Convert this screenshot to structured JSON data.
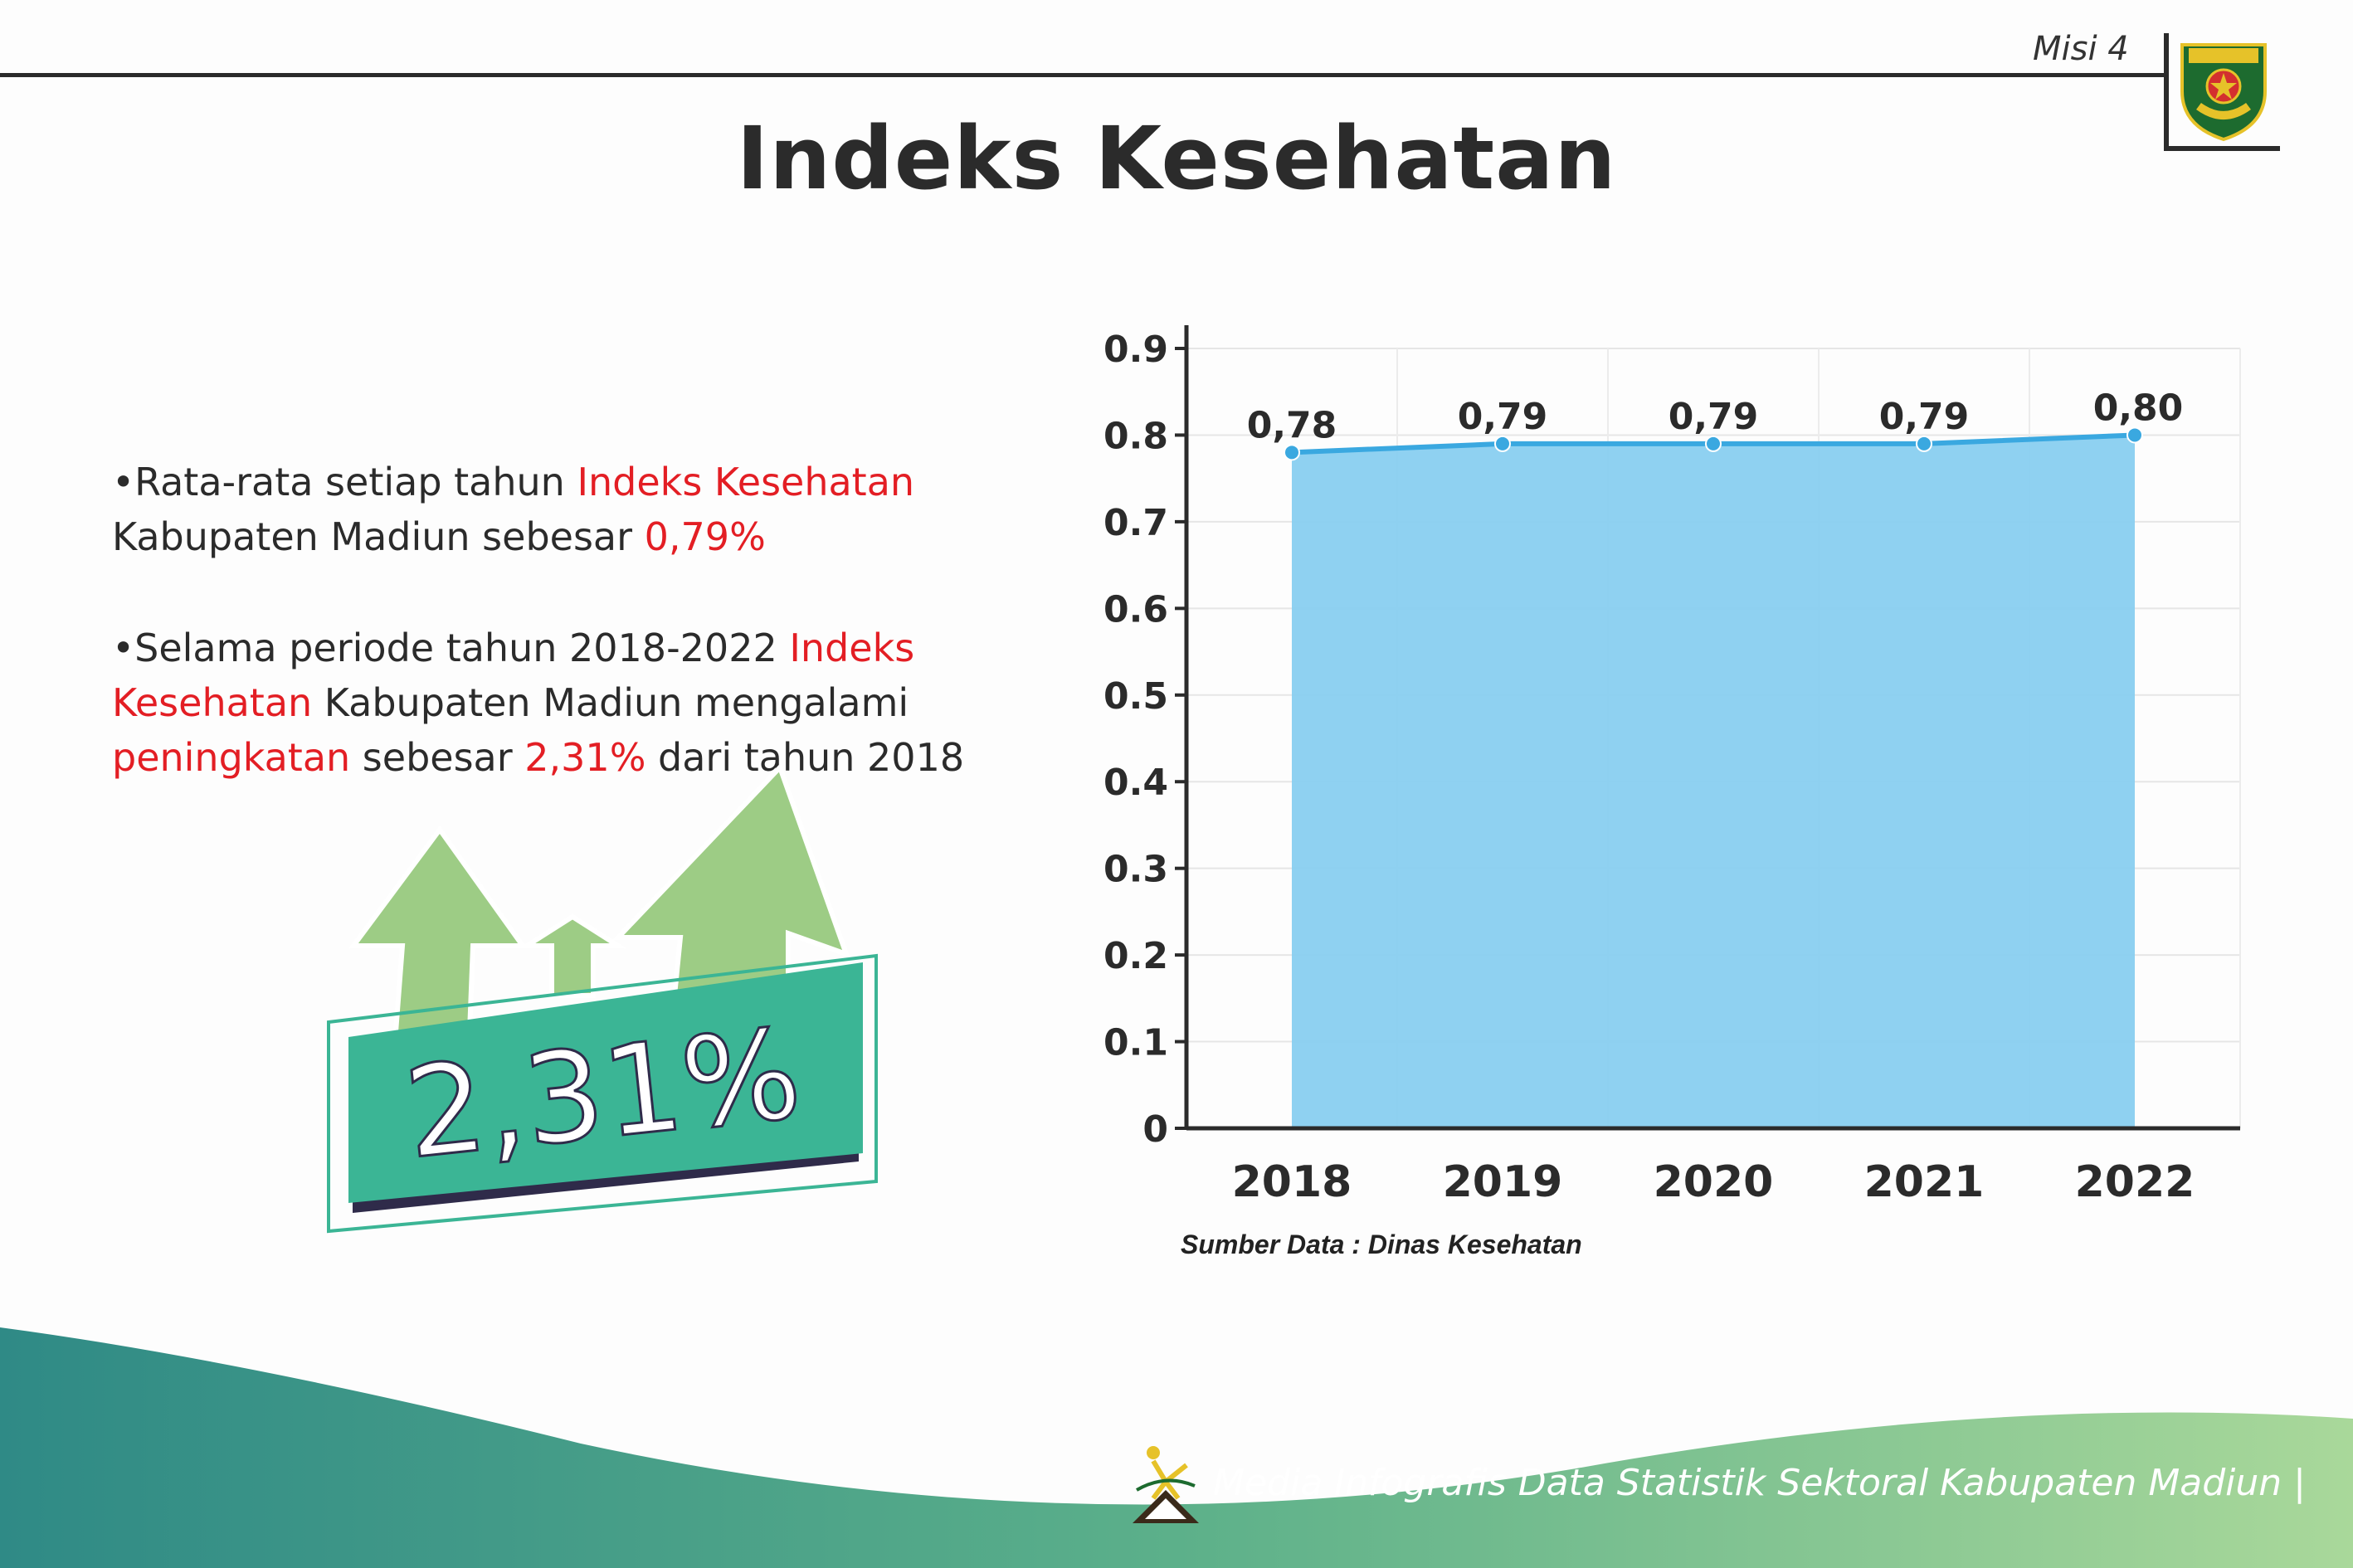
{
  "header": {
    "misi_label": "Misi 4",
    "title": "Indeks Kesehatan",
    "emblem": "kabupaten-madiun-emblem"
  },
  "bullets": [
    {
      "parts": [
        "Rata-rata setiap tahun ",
        "Indeks Kesehatan",
        " Kabupaten Madiun sebesar ",
        "0,79%"
      ]
    },
    {
      "parts": [
        "Selama periode tahun 2018-2022 ",
        "Indeks Kesehatan",
        " Kabupaten Madiun mengalami ",
        "peningkatan",
        " sebesar ",
        "2,31%",
        " dari tahun 2018"
      ]
    }
  ],
  "badge": {
    "value": "2,31%",
    "icon": "up-arrows-icon"
  },
  "chart_data": {
    "type": "area",
    "title": "",
    "categories": [
      "2018",
      "2019",
      "2020",
      "2021",
      "2022"
    ],
    "values": [
      0.78,
      0.79,
      0.79,
      0.79,
      0.8
    ],
    "data_labels": [
      "0,78",
      "0,79",
      "0,79",
      "0,79",
      "0,80"
    ],
    "ylim": [
      0,
      0.9
    ],
    "yticks": [
      0,
      0.1,
      0.2,
      0.3,
      0.4,
      0.5,
      0.6,
      0.7,
      0.8,
      0.9
    ],
    "ytick_labels": [
      "0",
      "0.1",
      "0.2",
      "0.3",
      "0.4",
      "0.5",
      "0.6",
      "0.7",
      "0.8",
      "0.9"
    ],
    "xlabel": "",
    "ylabel": "",
    "grid": true,
    "fill_color": "#89cff0",
    "line_color": "#3aa8e0"
  },
  "source": "Sumber Data : Dinas Kesehatan",
  "footer": {
    "text": "Media Infografis Data Statistik Sektoral Kabupaten Madiun |",
    "logo": "madiun-runner-logo-icon"
  },
  "colors": {
    "highlight": "#e31e24",
    "badge_green": "#3bb595",
    "arrow_green": "#9dcc85",
    "footer_teal": "#2f8a86",
    "footer_green": "#8dcf8f"
  }
}
